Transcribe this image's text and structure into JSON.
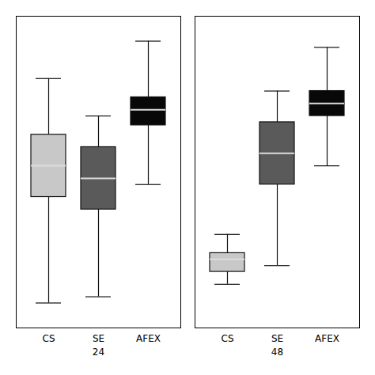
{
  "chart_data": {
    "type": "box",
    "categories": [
      "24",
      "48"
    ],
    "series": [
      {
        "name": "CS",
        "color": "#c8c8c8",
        "values": [
          {
            "whislo": 8,
            "q1": 42,
            "med": 52,
            "q3": 62,
            "whishi": 80
          },
          {
            "whislo": 14,
            "q1": 18,
            "med": 22,
            "q3": 24,
            "whishi": 30
          }
        ]
      },
      {
        "name": "SE",
        "color": "#5a5a5a",
        "values": [
          {
            "whislo": 10,
            "q1": 38,
            "med": 48,
            "q3": 58,
            "whishi": 68
          },
          {
            "whislo": 20,
            "q1": 46,
            "med": 56,
            "q3": 66,
            "whishi": 76
          }
        ]
      },
      {
        "name": "AFEX",
        "color": "#080808",
        "values": [
          {
            "whislo": 46,
            "q1": 65,
            "med": 70,
            "q3": 74,
            "whishi": 92
          },
          {
            "whislo": 52,
            "q1": 68,
            "med": 72,
            "q3": 76,
            "whishi": 90
          }
        ]
      }
    ],
    "ylim": [
      0,
      100
    ],
    "tick_labels": "x"
  }
}
